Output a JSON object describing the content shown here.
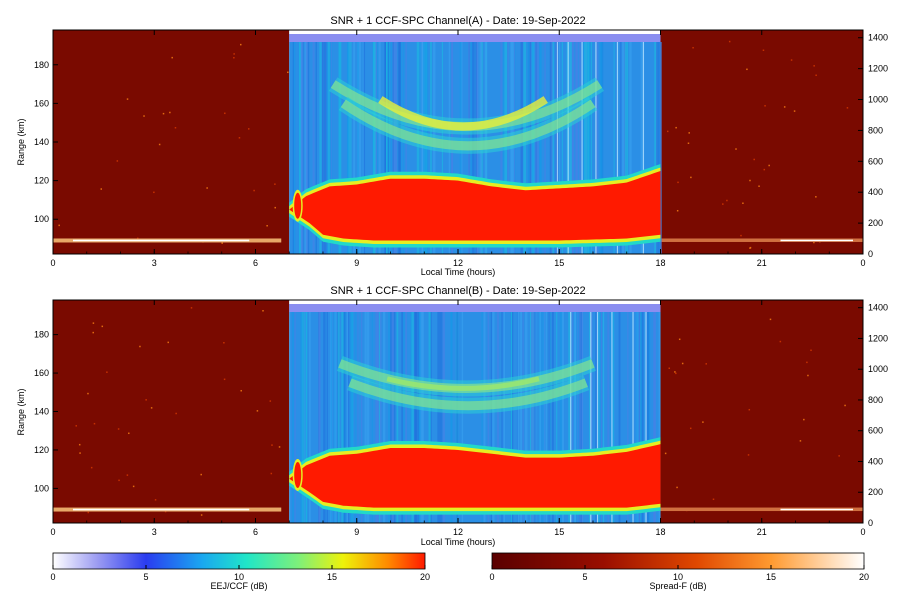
{
  "panels": [
    {
      "title": "SNR + 1 CCF-SPC Channel(A) - Date: 19-Sep-2022",
      "ylabel": "Range (km)",
      "xlabel": "Local Time (hours)"
    },
    {
      "title": "SNR + 1 CCF-SPC Channel(B) - Date: 19-Sep-2022",
      "ylabel": "Range (km)",
      "xlabel": "Local Time (hours)"
    }
  ],
  "colorbars": [
    {
      "label": "EEJ/CCF (dB)",
      "ticks": [
        "0",
        "5",
        "10",
        "15",
        "20"
      ],
      "colormap": "rainbow-white"
    },
    {
      "label": "Spread-F (dB)",
      "ticks": [
        "0",
        "5",
        "10",
        "15",
        "20"
      ],
      "colormap": "hot-dark-red"
    }
  ],
  "chart_data": [
    {
      "type": "heatmap",
      "title": "SNR + 1 CCF-SPC Channel(A) - Date: 19-Sep-2022",
      "xlabel": "Local Time (hours)",
      "ylabel": "Range (km)",
      "xlim": [
        0,
        24
      ],
      "ylim": [
        82,
        198
      ],
      "y2lim": [
        0,
        1450
      ],
      "x_ticks": [
        "0",
        "3",
        "6",
        "9",
        "12",
        "15",
        "18",
        "21",
        "0"
      ],
      "y_ticks": [
        100,
        120,
        140,
        160,
        180
      ],
      "y2_ticks": [
        0,
        200,
        400,
        600,
        800,
        1000,
        1200,
        1400
      ],
      "day_window": [
        7,
        18
      ],
      "night_layer_range_km": 89,
      "eej_bottom_km": [
        [
          7.0,
          105
        ],
        [
          7.6,
          98
        ],
        [
          8.0,
          92
        ],
        [
          8.6,
          90
        ],
        [
          9.5,
          89
        ],
        [
          12,
          89
        ],
        [
          15,
          89
        ],
        [
          17,
          90
        ],
        [
          18,
          92
        ]
      ],
      "eej_top_km": [
        [
          7.0,
          105
        ],
        [
          7.5,
          112
        ],
        [
          8.2,
          117
        ],
        [
          9.0,
          118
        ],
        [
          10.0,
          121
        ],
        [
          11.0,
          121
        ],
        [
          12.0,
          120
        ],
        [
          13.0,
          117
        ],
        [
          14.0,
          115
        ],
        [
          15.0,
          116
        ],
        [
          16.0,
          117
        ],
        [
          17.0,
          119
        ],
        [
          18.0,
          125
        ]
      ],
      "echo_arcs_km": [
        {
          "label": "upper",
          "edge_km": 170,
          "center_km": 148,
          "start_h": 8.3,
          "end_h": 16.2
        },
        {
          "label": "lower",
          "edge_km": 160,
          "center_km": 138,
          "start_h": 8.6,
          "end_h": 16.0
        }
      ]
    },
    {
      "type": "heatmap",
      "title": "SNR + 1 CCF-SPC Channel(B) - Date: 19-Sep-2022",
      "xlabel": "Local Time (hours)",
      "ylabel": "Range (km)",
      "xlim": [
        0,
        24
      ],
      "ylim": [
        82,
        198
      ],
      "y2lim": [
        0,
        1450
      ],
      "x_ticks": [
        "0",
        "3",
        "6",
        "9",
        "12",
        "15",
        "18",
        "21",
        "0"
      ],
      "y_ticks": [
        100,
        120,
        140,
        160,
        180
      ],
      "y2_ticks": [
        0,
        200,
        400,
        600,
        800,
        1000,
        1200,
        1400
      ],
      "day_window": [
        7,
        18
      ],
      "night_layer_range_km": 89,
      "eej_bottom_km": [
        [
          7.0,
          105
        ],
        [
          7.6,
          98
        ],
        [
          8.0,
          93
        ],
        [
          8.6,
          91
        ],
        [
          9.5,
          90
        ],
        [
          12,
          90
        ],
        [
          15,
          90
        ],
        [
          17,
          90
        ],
        [
          18,
          92
        ]
      ],
      "eej_top_km": [
        [
          7.0,
          105
        ],
        [
          7.5,
          112
        ],
        [
          8.2,
          117
        ],
        [
          9.0,
          118
        ],
        [
          10.0,
          121
        ],
        [
          11.0,
          121
        ],
        [
          12.0,
          120
        ],
        [
          13.0,
          118
        ],
        [
          14.0,
          116
        ],
        [
          15.0,
          116
        ],
        [
          16.0,
          117
        ],
        [
          17.0,
          119
        ],
        [
          18.0,
          123
        ]
      ],
      "echo_arcs_km": [
        {
          "label": "upper",
          "edge_km": 165,
          "center_km": 152,
          "start_h": 8.5,
          "end_h": 16.0
        },
        {
          "label": "lower",
          "edge_km": 155,
          "center_km": 143,
          "start_h": 8.8,
          "end_h": 15.8
        }
      ]
    }
  ]
}
